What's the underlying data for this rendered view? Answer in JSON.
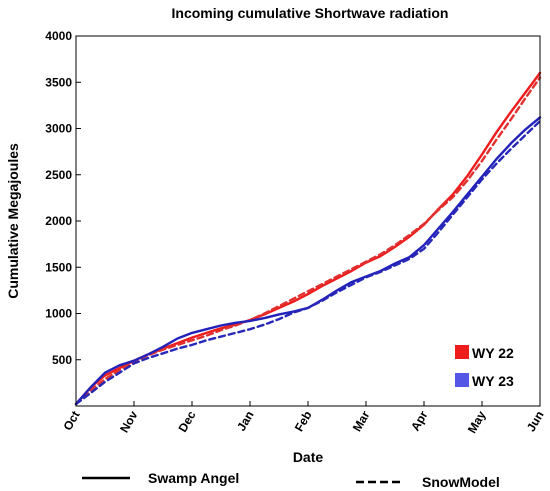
{
  "chart_data": {
    "type": "line",
    "title": "Incoming cumulative Shortwave radiation",
    "xlabel": "Date",
    "ylabel": "Cumulative Megajoules",
    "xlim": [
      0,
      8
    ],
    "ylim": [
      0,
      4000
    ],
    "x_tick_labels": [
      "Oct",
      "Nov",
      "Dec",
      "Jan",
      "Feb",
      "Mar",
      "Apr",
      "May",
      "Jun"
    ],
    "y_ticks": [
      500,
      1000,
      1500,
      2000,
      2500,
      3000,
      3500,
      4000
    ],
    "grid": false,
    "legend": {
      "placement": "bottom-right",
      "entries": [
        {
          "label": "WY 22",
          "color": "#ee1c1c"
        },
        {
          "label": "WY 23",
          "color": "#5555e6"
        }
      ]
    },
    "line_style_legend": [
      {
        "label": "Swamp Angel",
        "style": "solid"
      },
      {
        "label": "SnowModel",
        "style": "dashed"
      }
    ],
    "x": [
      0,
      0.25,
      0.5,
      0.75,
      1,
      1.25,
      1.5,
      1.75,
      2,
      2.25,
      2.5,
      2.75,
      3,
      3.25,
      3.5,
      3.75,
      4,
      4.25,
      4.5,
      4.75,
      5,
      5.25,
      5.5,
      5.75,
      6,
      6.25,
      6.5,
      6.75,
      7,
      7.25,
      7.5,
      7.75,
      8
    ],
    "series": [
      {
        "name": "WY 22",
        "style": "solid",
        "color": "#ee1c1c",
        "axis_color": "#ee1c1c",
        "values": [
          20,
          200,
          330,
          410,
          490,
          560,
          620,
          680,
          740,
          790,
          840,
          880,
          930,
          990,
          1060,
          1130,
          1210,
          1300,
          1380,
          1460,
          1550,
          1620,
          1720,
          1830,
          1960,
          2130,
          2290,
          2490,
          2720,
          2960,
          3180,
          3390,
          3600
        ]
      },
      {
        "name": "WY 22",
        "style": "dashed",
        "color": "#e03030",
        "values": [
          20,
          170,
          290,
          390,
          480,
          550,
          610,
          660,
          710,
          760,
          820,
          870,
          930,
          1000,
          1080,
          1160,
          1240,
          1320,
          1400,
          1480,
          1560,
          1640,
          1740,
          1850,
          1970,
          2120,
          2260,
          2440,
          2650,
          2880,
          3100,
          3330,
          3550
        ]
      },
      {
        "name": "WY 23",
        "style": "solid",
        "color": "#2222bb",
        "values": [
          20,
          200,
          360,
          440,
          490,
          560,
          640,
          730,
          790,
          830,
          870,
          900,
          920,
          950,
          990,
          1020,
          1060,
          1150,
          1250,
          1340,
          1400,
          1460,
          1540,
          1610,
          1740,
          1920,
          2100,
          2290,
          2480,
          2670,
          2840,
          2990,
          3120
        ]
      },
      {
        "name": "WY 23",
        "style": "dashed",
        "color": "#2828b8",
        "values": [
          20,
          140,
          260,
          360,
          460,
          520,
          570,
          620,
          660,
          710,
          750,
          790,
          830,
          880,
          940,
          1010,
          1060,
          1140,
          1230,
          1310,
          1390,
          1450,
          1520,
          1590,
          1700,
          1880,
          2070,
          2260,
          2450,
          2620,
          2780,
          2930,
          3080
        ]
      }
    ]
  }
}
